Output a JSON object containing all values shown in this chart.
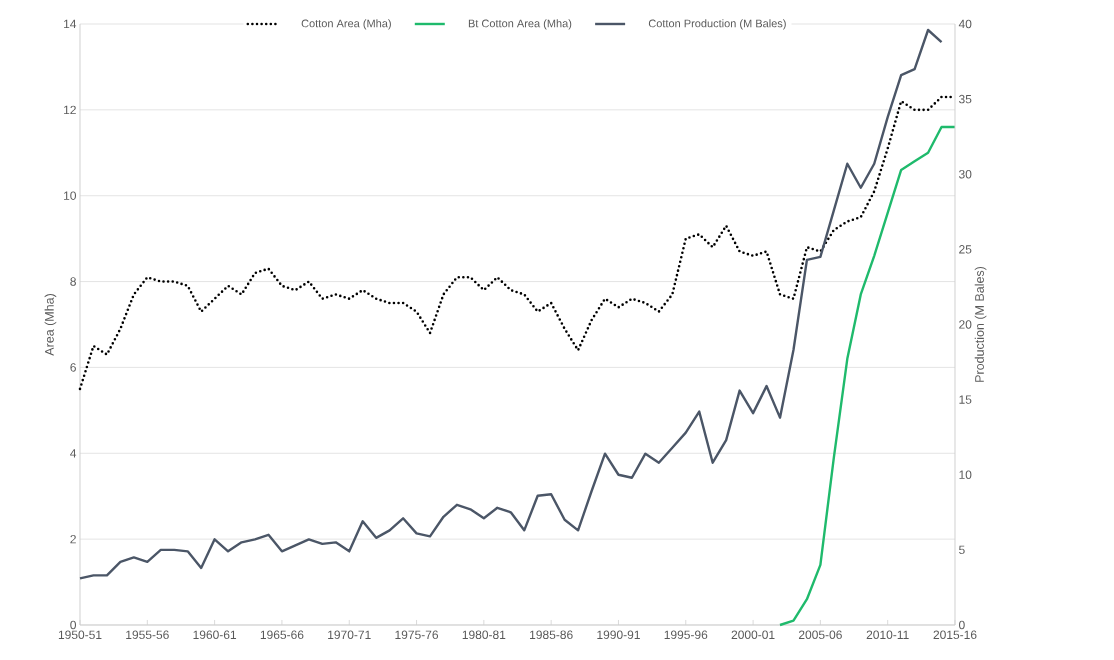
{
  "chart_data": {
    "type": "line",
    "categories": [
      "1950-51",
      null,
      null,
      null,
      null,
      "1955-56",
      null,
      null,
      null,
      null,
      "1960-61",
      null,
      null,
      null,
      null,
      "1965-66",
      null,
      null,
      null,
      null,
      "1970-71",
      null,
      null,
      null,
      null,
      "1975-76",
      null,
      null,
      null,
      null,
      "1980-81",
      null,
      null,
      null,
      null,
      "1985-86",
      null,
      null,
      null,
      null,
      "1990-91",
      null,
      null,
      null,
      null,
      "1995-96",
      null,
      null,
      null,
      null,
      "2000-01",
      null,
      null,
      null,
      null,
      "2005-06",
      null,
      null,
      null,
      null,
      "2010-11",
      null,
      null,
      null,
      null,
      "2015-16"
    ],
    "series": [
      {
        "name": "Cotton Area (Mha)",
        "color": "#000000",
        "line_style": "dotted",
        "values": [
          5.5,
          6.5,
          6.3,
          6.9,
          7.7,
          8.1,
          8.0,
          8.0,
          7.9,
          7.3,
          7.6,
          7.9,
          7.7,
          8.2,
          8.3,
          7.9,
          7.8,
          8.0,
          7.6,
          7.7,
          7.6,
          7.8,
          7.6,
          7.5,
          7.5,
          7.3,
          6.8,
          7.7,
          8.1,
          8.1,
          7.8,
          8.1,
          7.8,
          7.7,
          7.3,
          7.5,
          6.9,
          6.4,
          7.1,
          7.6,
          7.4,
          7.6,
          7.5,
          7.3,
          7.7,
          9.0,
          9.1,
          8.8,
          9.3,
          8.7,
          8.6,
          8.7,
          7.7,
          7.6,
          8.8,
          8.7,
          9.2,
          9.4,
          9.5,
          10.1,
          11.1,
          12.2,
          12.0,
          12.0,
          12.3,
          12.3
        ]
      },
      {
        "name": "Bt Cotton Area (Mha)",
        "color": "#1fba6c",
        "line_style": "solid",
        "values": [
          null,
          null,
          null,
          null,
          null,
          null,
          null,
          null,
          null,
          null,
          null,
          null,
          null,
          null,
          null,
          null,
          null,
          null,
          null,
          null,
          null,
          null,
          null,
          null,
          null,
          null,
          null,
          null,
          null,
          null,
          null,
          null,
          null,
          null,
          null,
          null,
          null,
          null,
          null,
          null,
          null,
          null,
          null,
          null,
          null,
          null,
          null,
          null,
          null,
          null,
          null,
          null,
          0.0,
          0.1,
          0.6,
          1.4,
          3.9,
          6.2,
          7.7,
          8.6,
          9.6,
          10.6,
          10.8,
          11.0,
          11.6,
          11.6
        ]
      },
      {
        "name": "Cotton Production (M Bales)",
        "color": "#4b5667",
        "line_style": "solid",
        "axis": "y2",
        "values": [
          3.1,
          3.3,
          3.3,
          4.2,
          4.5,
          4.2,
          5.0,
          5.0,
          4.9,
          3.8,
          5.7,
          4.9,
          5.5,
          5.7,
          6.0,
          4.9,
          5.3,
          5.7,
          5.4,
          5.5,
          4.9,
          6.9,
          5.8,
          6.3,
          7.1,
          6.1,
          5.9,
          7.2,
          8.0,
          7.7,
          7.1,
          7.8,
          7.5,
          6.3,
          8.6,
          8.7,
          7.0,
          6.3,
          8.9,
          11.4,
          10.0,
          9.8,
          11.4,
          10.8,
          11.8,
          12.8,
          14.2,
          10.8,
          12.3,
          15.6,
          14.1,
          15.9,
          13.8,
          18.3,
          24.3,
          24.5,
          27.6,
          30.7,
          29.1,
          30.7,
          33.8,
          36.6,
          37.0,
          39.6,
          38.8,
          null
        ]
      }
    ],
    "ylabel": "Area (Mha)",
    "y2label": "Production (M Bales)",
    "ylim": [
      0,
      14
    ],
    "yticks": [
      0,
      2,
      4,
      6,
      8,
      10,
      12,
      14
    ],
    "y2lim": [
      0,
      40
    ],
    "y2ticks": [
      0,
      5,
      10,
      15,
      20,
      25,
      30,
      35,
      40
    ],
    "grid": "y",
    "legend": "top"
  }
}
